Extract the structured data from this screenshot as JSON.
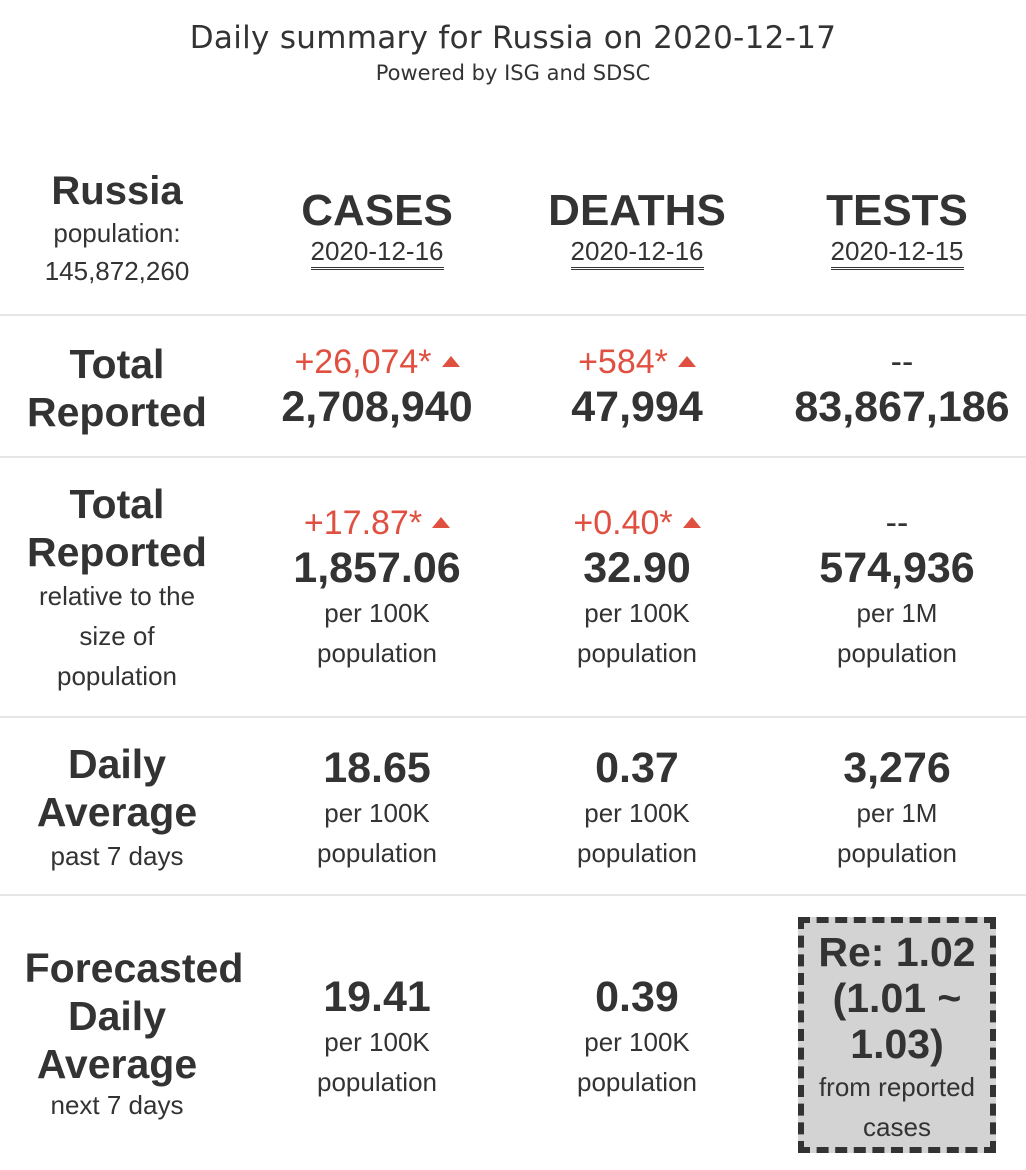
{
  "header": {
    "title": "Daily summary for Russia on 2020-12-17",
    "subtitle": "Powered by ISG and SDSC"
  },
  "country": {
    "name": "Russia",
    "population_label": "population:",
    "population": "145,872,260"
  },
  "columns": [
    {
      "name": "CASES",
      "date": "2020-12-16"
    },
    {
      "name": "DEATHS",
      "date": "2020-12-16"
    },
    {
      "name": "TESTS",
      "date": "2020-12-15"
    }
  ],
  "rows": {
    "total": {
      "label_line1": "Total",
      "label_line2": "Reported",
      "cases": {
        "change": "+26,074*",
        "value": "2,708,940"
      },
      "deaths": {
        "change": "+584*",
        "value": "47,994"
      },
      "tests": {
        "change": "--",
        "value": "83,867,186"
      }
    },
    "relative": {
      "label_line1": "Total",
      "label_line2": "Reported",
      "sub_line1": "relative to the",
      "sub_line2": "size of",
      "sub_line3": "population",
      "cases": {
        "change": "+17.87*",
        "value": "1,857.06",
        "unit1": "per 100K",
        "unit2": "population"
      },
      "deaths": {
        "change": "+0.40*",
        "value": "32.90",
        "unit1": "per 100K",
        "unit2": "population"
      },
      "tests": {
        "change": "--",
        "value": "574,936",
        "unit1": "per 1M",
        "unit2": "population"
      }
    },
    "daily": {
      "label_line1": "Daily",
      "label_line2": "Average",
      "sub": "past 7 days",
      "cases": {
        "value": "18.65",
        "unit1": "per 100K",
        "unit2": "population"
      },
      "deaths": {
        "value": "0.37",
        "unit1": "per 100K",
        "unit2": "population"
      },
      "tests": {
        "value": "3,276",
        "unit1": "per 1M",
        "unit2": "population"
      }
    },
    "forecast": {
      "label_line1": "Forecasted",
      "label_line2": "Daily",
      "label_line3": "Average",
      "sub": "next 7 days",
      "cases": {
        "value": "19.41",
        "unit1": "per 100K",
        "unit2": "population"
      },
      "deaths": {
        "value": "0.39",
        "unit1": "per 100K",
        "unit2": "population"
      },
      "re": {
        "line1": "Re: 1.02",
        "line2": "(1.01 ~",
        "line3": "1.03)",
        "sub1": "from reported",
        "sub2": "cases"
      }
    }
  },
  "colors": {
    "text": "#333333",
    "increase": "#e05040",
    "separator": "#e6e6e6",
    "re_box_bg": "#d3d3d3"
  }
}
